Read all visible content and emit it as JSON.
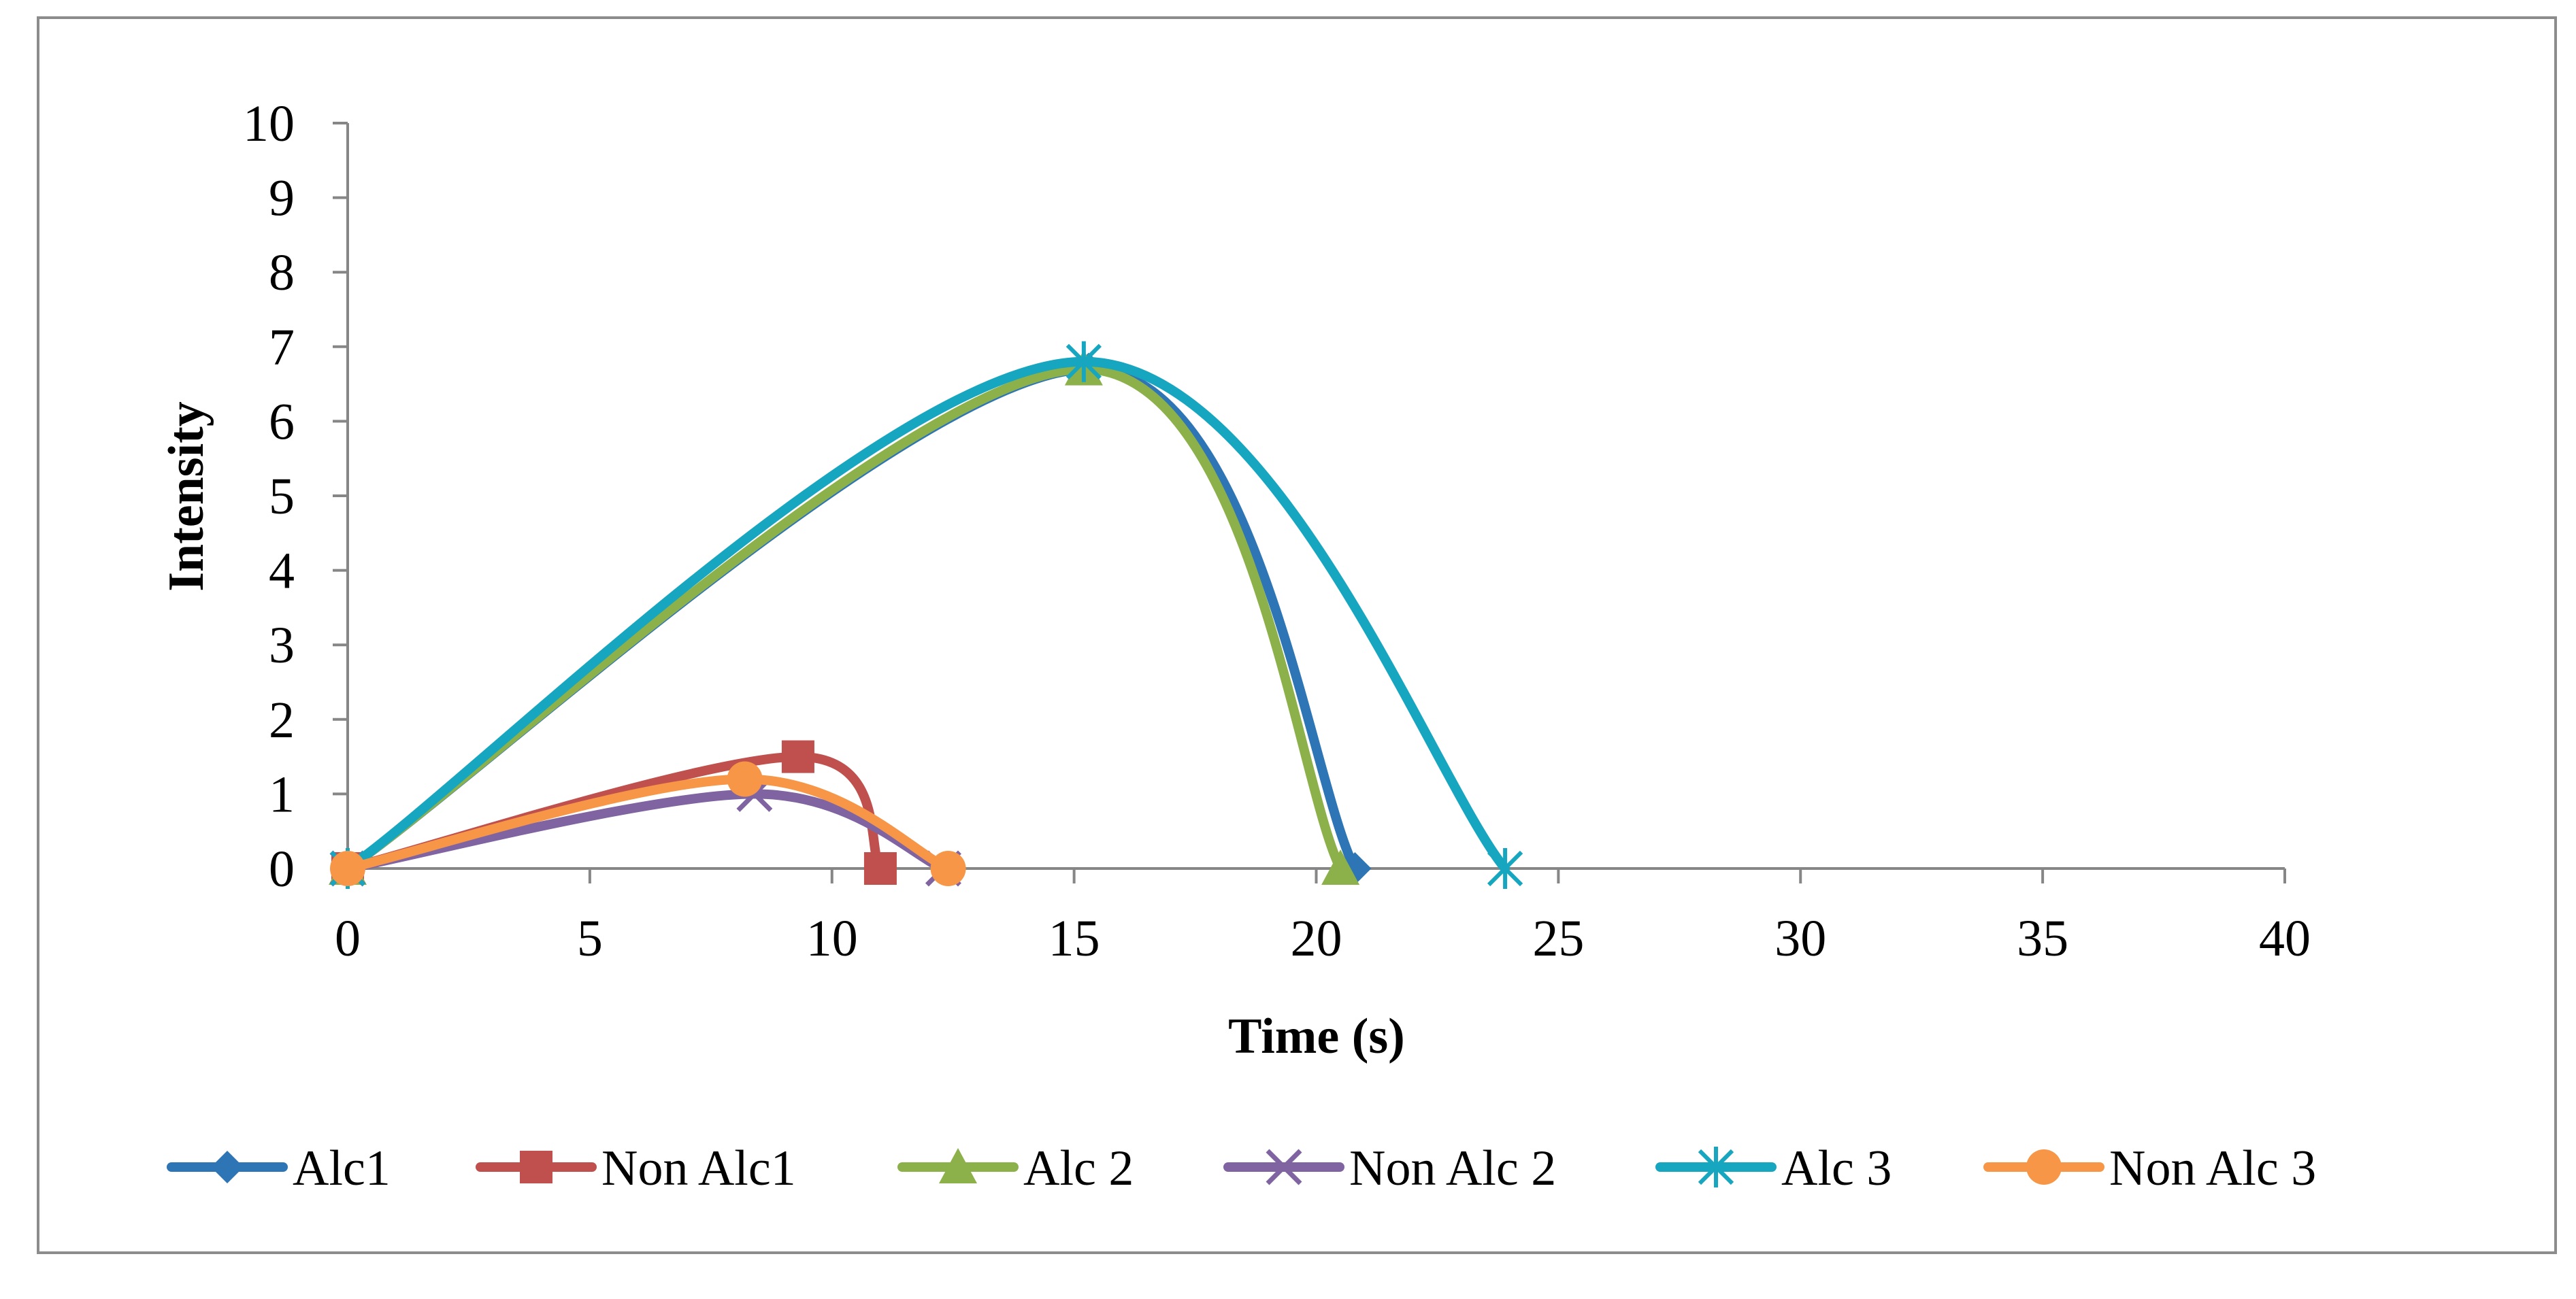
{
  "chart_data": {
    "type": "line",
    "smooth": true,
    "title": "",
    "xlabel": "Time (s)",
    "ylabel": "Intensity",
    "xlim": [
      0,
      40
    ],
    "ylim": [
      0,
      10
    ],
    "x_ticks": [
      0,
      5,
      10,
      15,
      20,
      25,
      30,
      35,
      40
    ],
    "y_ticks": [
      0,
      1,
      2,
      3,
      4,
      5,
      6,
      7,
      8,
      9,
      10
    ],
    "grid": false,
    "legend_position": "bottom",
    "series": [
      {
        "name": "Alc1",
        "color": "#2e75b6",
        "marker": "diamond",
        "points": [
          [
            0,
            0
          ],
          [
            15.3,
            6.7
          ],
          [
            20.8,
            0
          ]
        ]
      },
      {
        "name": "Non Alc1",
        "color": "#c0504d",
        "marker": "square",
        "points": [
          [
            0,
            0
          ],
          [
            9.3,
            1.5
          ],
          [
            11,
            0
          ]
        ]
      },
      {
        "name": "Alc 2",
        "color": "#8db14a",
        "marker": "triangle",
        "points": [
          [
            0,
            0
          ],
          [
            15.2,
            6.7
          ],
          [
            20.5,
            0
          ]
        ]
      },
      {
        "name": "Non Alc 2",
        "color": "#8064a2",
        "marker": "x",
        "points": [
          [
            0,
            0
          ],
          [
            8.4,
            1.0
          ],
          [
            12.3,
            0
          ]
        ]
      },
      {
        "name": "Alc 3",
        "color": "#17a6c0",
        "marker": "asterisk",
        "points": [
          [
            0,
            0
          ],
          [
            15.2,
            6.8
          ],
          [
            23.9,
            0
          ]
        ]
      },
      {
        "name": "Non Alc 3",
        "color": "#f79646",
        "marker": "circle",
        "points": [
          [
            0,
            0
          ],
          [
            8.2,
            1.2
          ],
          [
            12.4,
            0
          ]
        ]
      }
    ]
  }
}
